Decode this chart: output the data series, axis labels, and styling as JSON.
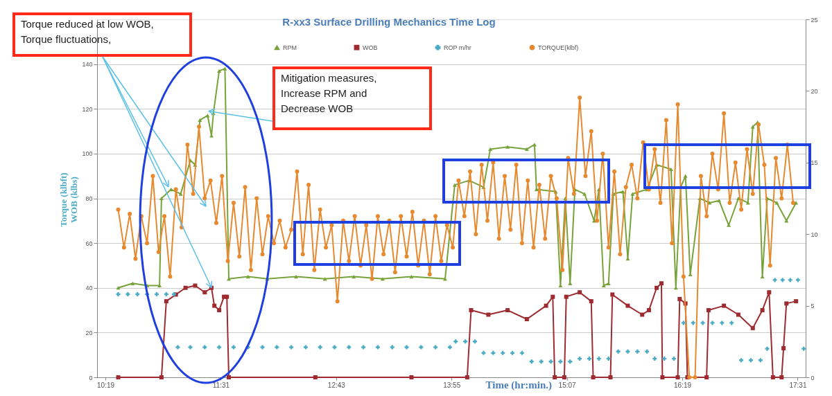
{
  "chart_data": {
    "type": "line",
    "title": "R-xx3 Surface Drilling Mechanics Time Log",
    "xlabel": "Time (hr:min.)",
    "ylabel": "Torque (klbft)\nWOB (klbs)",
    "xlim": [
      10.23,
      17.6
    ],
    "xticks": [
      {
        "value": 10.3167,
        "label": "10:19"
      },
      {
        "value": 11.5167,
        "label": "11:31"
      },
      {
        "value": 12.7167,
        "label": "12:43"
      },
      {
        "value": 13.9167,
        "label": "13:55"
      },
      {
        "value": 15.1167,
        "label": "15:07"
      },
      {
        "value": 16.3167,
        "label": "16:19"
      },
      {
        "value": 17.5167,
        "label": "17:31"
      }
    ],
    "ylim": [
      0,
      160
    ],
    "yticks": [
      0,
      20,
      40,
      60,
      80,
      100,
      120,
      140
    ],
    "y2lim": [
      0,
      25
    ],
    "y2ticks": [
      0,
      5,
      10,
      15,
      20,
      25
    ],
    "grid": "y",
    "legend": "top",
    "annotations": [
      {
        "text": "Torque reduced at low WOB,\nTorque fluctuations,",
        "x": 11.42,
        "y": 40
      },
      {
        "text": "Mitigation measures,\nIncrease RPM and\nDecrease WOB",
        "x": 11.39,
        "y": 119
      }
    ],
    "series": [
      {
        "name": "RPM",
        "marker": "triangle",
        "color": "#77a33a",
        "x": [
          10.45,
          10.6,
          10.75,
          10.88,
          10.9,
          11.0,
          11.1,
          11.2,
          11.25,
          11.3,
          11.38,
          11.42,
          11.44,
          11.5,
          11.56,
          11.6,
          11.8,
          12.0,
          12.3,
          12.6,
          12.9,
          13.2,
          13.5,
          13.85,
          13.95,
          14.1,
          14.25,
          14.32,
          14.5,
          14.7,
          14.78,
          14.8,
          15.0,
          15.05,
          15.1,
          15.15,
          15.2,
          15.3,
          15.4,
          15.45,
          15.5,
          15.55,
          15.6,
          15.7,
          15.75,
          15.8,
          15.95,
          16.05,
          16.2,
          16.25,
          16.3,
          16.35,
          16.4,
          16.5,
          16.6,
          16.7,
          16.8,
          16.9,
          17.0,
          17.05,
          17.1,
          17.15,
          17.2,
          17.3,
          17.4,
          17.5
        ],
        "values": [
          40,
          42,
          41,
          41,
          80,
          84,
          82,
          97,
          95,
          115,
          117,
          108,
          118,
          137,
          138,
          44,
          45,
          44,
          45,
          44,
          45,
          44,
          45,
          44,
          86,
          88,
          85,
          102,
          103,
          102,
          104,
          84,
          83,
          41,
          80,
          42,
          84,
          82,
          70,
          84,
          41,
          42,
          82,
          83,
          53,
          82,
          84,
          95,
          93,
          40,
          85,
          90,
          46,
          80,
          78,
          79,
          68,
          80,
          78,
          112,
          114,
          45,
          80,
          78,
          70,
          78
        ]
      },
      {
        "name": "WOB",
        "marker": "square",
        "color": "#9e2b2f",
        "x": [
          10.45,
          10.9,
          10.95,
          11.05,
          11.15,
          11.25,
          11.35,
          11.42,
          11.45,
          11.5,
          11.55,
          11.58,
          11.6,
          12.5,
          13.5,
          14.08,
          14.12,
          14.3,
          14.5,
          14.7,
          14.9,
          14.97,
          14.99,
          15.09,
          15.11,
          15.25,
          15.37,
          15.39,
          15.57,
          15.59,
          15.75,
          15.9,
          15.97,
          16.05,
          16.1,
          16.11,
          16.27,
          16.29,
          16.35,
          16.37,
          16.57,
          16.59,
          16.75,
          16.9,
          17.05,
          17.15,
          17.22,
          17.26,
          17.35,
          17.37,
          17.4,
          17.5
        ],
        "values": [
          0,
          0,
          34,
          37,
          40,
          41,
          38,
          40,
          32,
          30,
          36,
          36,
          0,
          0,
          0,
          0,
          30,
          28,
          30,
          26,
          32,
          36,
          0,
          0,
          36,
          38,
          34,
          0,
          0,
          37,
          32,
          28,
          30,
          40,
          42,
          0,
          0,
          35,
          33,
          0,
          0,
          30,
          32,
          28,
          22,
          30,
          38,
          0,
          0,
          13,
          33,
          34
        ]
      },
      {
        "name": "ROP m/hr",
        "type": "scatter",
        "marker": "cross",
        "axis": "y2",
        "color": "#4bacc6",
        "x": [
          10.45,
          10.55,
          10.65,
          10.75,
          10.85,
          10.95,
          11.03,
          11.07,
          11.2,
          11.35,
          11.5,
          11.65,
          11.8,
          11.95,
          12.1,
          12.25,
          12.4,
          12.55,
          12.7,
          12.85,
          13.0,
          13.15,
          13.3,
          13.45,
          13.6,
          13.75,
          13.9,
          13.96,
          14.06,
          14.16,
          14.25,
          14.35,
          14.45,
          14.55,
          14.65,
          14.75,
          14.85,
          14.95,
          15.05,
          15.15,
          15.25,
          15.35,
          15.45,
          15.55,
          15.65,
          15.75,
          15.85,
          15.95,
          16.03,
          16.13,
          16.23,
          16.33,
          16.43,
          16.53,
          16.63,
          16.73,
          16.83,
          16.93,
          17.03,
          17.13,
          17.2,
          17.28,
          17.36,
          17.44,
          17.52,
          17.58
        ],
        "values": [
          5.8,
          5.8,
          5.8,
          5.8,
          5.8,
          5.8,
          5.8,
          2.1,
          2.1,
          2.1,
          2.1,
          2.1,
          2.1,
          2.1,
          2.1,
          2.1,
          2.1,
          2.1,
          2.1,
          2.1,
          2.1,
          2.1,
          2.1,
          2.1,
          2.1,
          2.1,
          2.1,
          2.5,
          2.5,
          2.5,
          1.7,
          1.7,
          1.7,
          1.7,
          1.7,
          1.1,
          1.1,
          1.1,
          1.1,
          1.1,
          1.3,
          1.3,
          1.3,
          1.3,
          1.8,
          1.8,
          1.8,
          1.8,
          1.3,
          1.3,
          1.3,
          3.8,
          3.8,
          3.8,
          3.8,
          3.8,
          3.8,
          1.2,
          1.2,
          1.2,
          2.0,
          6.8,
          6.8,
          6.8,
          6.8,
          2.0
        ]
      },
      {
        "name": "TORQUE(klbf)",
        "marker": "circle",
        "color": "#e6892f",
        "x": [
          10.45,
          10.51,
          10.57,
          10.63,
          10.69,
          10.75,
          10.81,
          10.87,
          10.93,
          10.99,
          11.05,
          11.11,
          11.17,
          11.23,
          11.29,
          11.35,
          11.41,
          11.47,
          11.53,
          11.59,
          11.65,
          11.71,
          11.77,
          11.83,
          11.89,
          11.95,
          12.01,
          12.07,
          12.13,
          12.19,
          12.25,
          12.31,
          12.37,
          12.43,
          12.49,
          12.55,
          12.61,
          12.67,
          12.73,
          12.79,
          12.85,
          12.91,
          12.97,
          13.03,
          13.09,
          13.15,
          13.21,
          13.27,
          13.33,
          13.39,
          13.45,
          13.51,
          13.57,
          13.63,
          13.69,
          13.75,
          13.81,
          13.87,
          13.93,
          13.99,
          14.05,
          14.11,
          14.17,
          14.23,
          14.29,
          14.35,
          14.41,
          14.47,
          14.53,
          14.59,
          14.65,
          14.71,
          14.77,
          14.83,
          14.89,
          14.95,
          15.01,
          15.07,
          15.13,
          15.19,
          15.25,
          15.31,
          15.37,
          15.43,
          15.49,
          15.55,
          15.61,
          15.67,
          15.73,
          15.79,
          15.85,
          15.91,
          15.97,
          16.03,
          16.09,
          16.15,
          16.21,
          16.27,
          16.33,
          16.39,
          16.45,
          16.51,
          16.57,
          16.63,
          16.69,
          16.75,
          16.81,
          16.87,
          16.93,
          16.99,
          17.05,
          17.11,
          17.17,
          17.23,
          17.29,
          17.35,
          17.41,
          17.47
        ],
        "values": [
          75,
          58,
          73,
          53,
          72,
          60,
          90,
          56,
          72,
          45,
          84,
          67,
          104,
          82,
          112,
          80,
          88,
          69,
          90,
          52,
          78,
          54,
          85,
          48,
          80,
          55,
          72,
          60,
          70,
          58,
          66,
          92,
          55,
          86,
          48,
          75,
          58,
          68,
          34,
          70,
          52,
          72,
          50,
          68,
          44,
          72,
          55,
          70,
          47,
          72,
          54,
          74,
          50,
          70,
          46,
          72,
          52,
          68,
          58,
          88,
          72,
          92,
          64,
          95,
          70,
          96,
          62,
          90,
          66,
          95,
          60,
          88,
          58,
          86,
          62,
          90,
          80,
          48,
          98,
          82,
          125,
          90,
          110,
          70,
          100,
          58,
          92,
          55,
          85,
          95,
          80,
          105,
          84,
          102,
          78,
          115,
          60,
          122,
          45,
          0,
          0,
          90,
          72,
          100,
          84,
          118,
          78,
          96,
          75,
          102,
          82,
          113,
          95,
          50,
          98,
          80,
          104,
          78
        ]
      }
    ]
  }
}
